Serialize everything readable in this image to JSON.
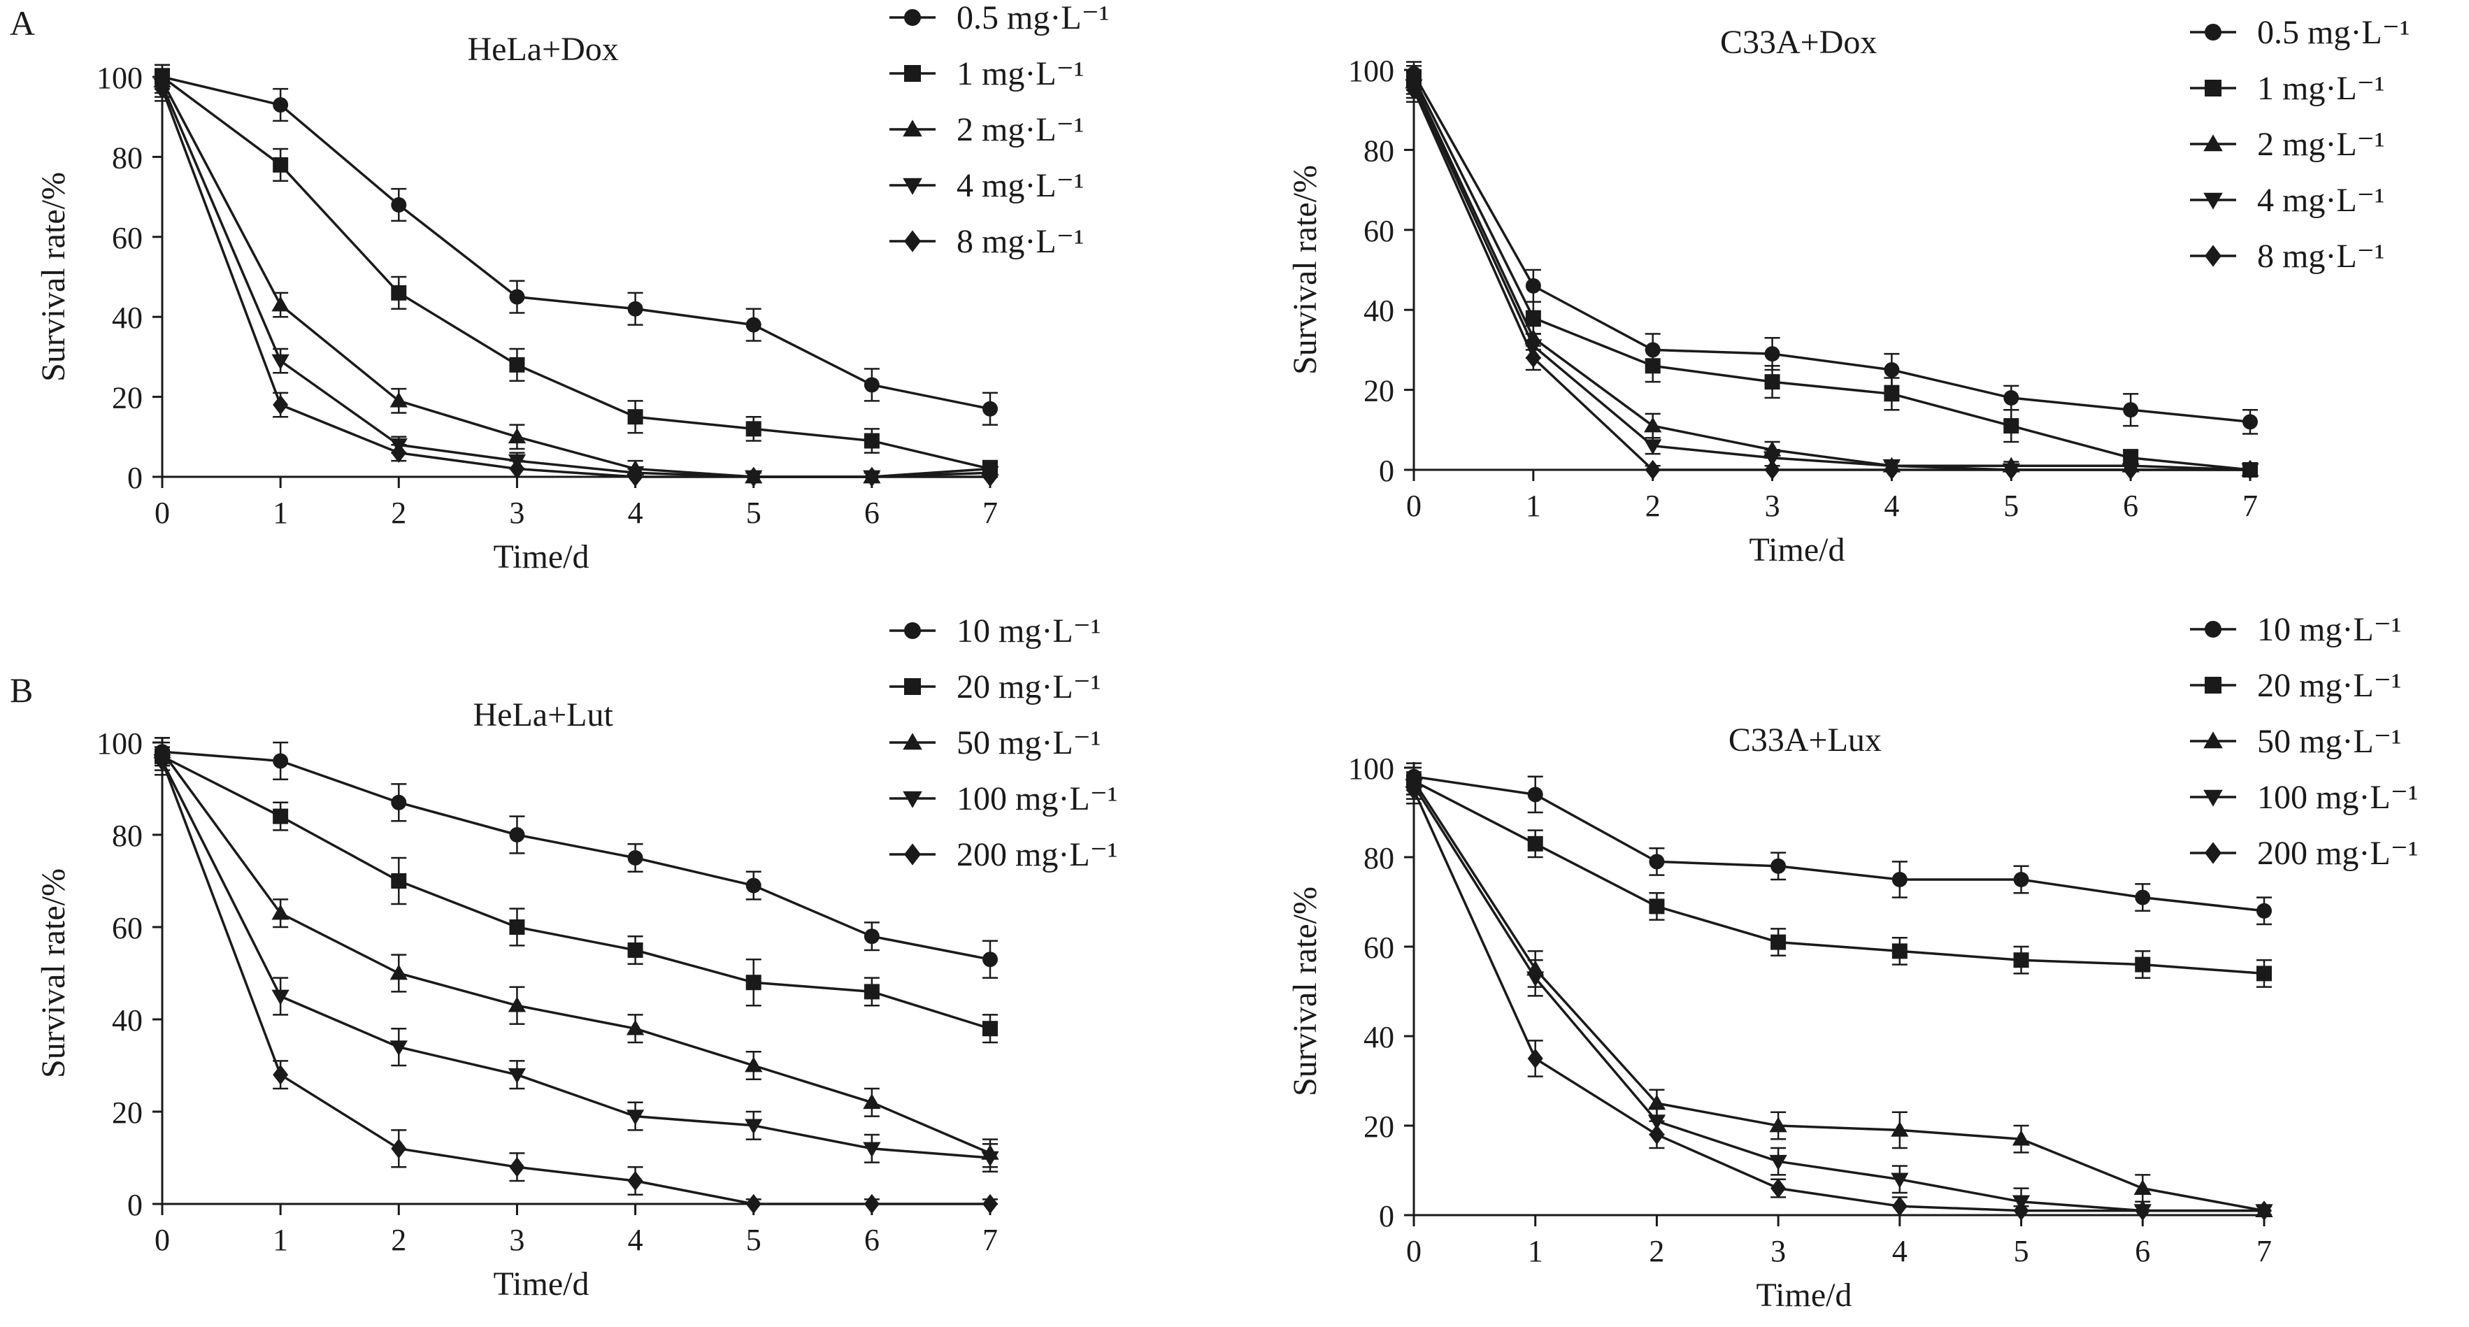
{
  "panel_labels": [
    "A",
    "B"
  ],
  "colors": {
    "ink": "#1a1a1a",
    "background": "#ffffff"
  },
  "chart_data": [
    {
      "type": "line",
      "title": "HeLa+Dox",
      "xlabel": "Time/d",
      "ylabel": "Survival rate/%",
      "x": [
        0,
        1,
        2,
        3,
        4,
        5,
        6,
        7
      ],
      "xlim": [
        0,
        7
      ],
      "ylim": [
        0,
        100
      ],
      "yticks": [
        0,
        20,
        40,
        60,
        80,
        100
      ],
      "legend_position": "top-right, outside plot",
      "grid": false,
      "error_bars": true,
      "series": [
        {
          "name": "0.5 mg·L⁻¹",
          "marker": "circle",
          "values": [
            100,
            93,
            68,
            45,
            42,
            38,
            23,
            17
          ],
          "errors": [
            3,
            4,
            4,
            4,
            4,
            4,
            4,
            4
          ]
        },
        {
          "name": "1 mg·L⁻¹",
          "marker": "square",
          "values": [
            100,
            78,
            46,
            28,
            15,
            12,
            9,
            2
          ],
          "errors": [
            3,
            4,
            4,
            4,
            4,
            3,
            3,
            2
          ]
        },
        {
          "name": "2 mg·L⁻¹",
          "marker": "triangle-up",
          "values": [
            99,
            43,
            19,
            10,
            2,
            0,
            0,
            2
          ],
          "errors": [
            3,
            3,
            3,
            3,
            2,
            1,
            1,
            2
          ]
        },
        {
          "name": "4 mg·L⁻¹",
          "marker": "triangle-down",
          "values": [
            98,
            29,
            8,
            4,
            1,
            0,
            0,
            1
          ],
          "errors": [
            3,
            3,
            2,
            2,
            1,
            1,
            1,
            1
          ]
        },
        {
          "name": "8 mg·L⁻¹",
          "marker": "diamond",
          "values": [
            97,
            18,
            6,
            2,
            0,
            0,
            0,
            0
          ],
          "errors": [
            3,
            3,
            2,
            2,
            1,
            1,
            1,
            1
          ]
        }
      ]
    },
    {
      "type": "line",
      "title": "C33A+Dox",
      "xlabel": "Time/d",
      "ylabel": "Survival rate/%",
      "x": [
        0,
        1,
        2,
        3,
        4,
        5,
        6,
        7
      ],
      "xlim": [
        0,
        7
      ],
      "ylim": [
        0,
        100
      ],
      "yticks": [
        0,
        20,
        40,
        60,
        80,
        100
      ],
      "legend_position": "top-right, outside plot",
      "grid": false,
      "error_bars": true,
      "series": [
        {
          "name": "0.5 mg·L⁻¹",
          "marker": "circle",
          "values": [
            99,
            46,
            30,
            29,
            25,
            18,
            15,
            12
          ],
          "errors": [
            3,
            4,
            4,
            4,
            4,
            3,
            4,
            3
          ]
        },
        {
          "name": "1 mg·L⁻¹",
          "marker": "square",
          "values": [
            98,
            38,
            26,
            22,
            19,
            11,
            3,
            0
          ],
          "errors": [
            3,
            4,
            4,
            4,
            4,
            4,
            2,
            1
          ]
        },
        {
          "name": "2 mg·L⁻¹",
          "marker": "triangle-up",
          "values": [
            97,
            33,
            11,
            5,
            1,
            1,
            1,
            0
          ],
          "errors": [
            3,
            3,
            3,
            2,
            1,
            1,
            1,
            1
          ]
        },
        {
          "name": "4 mg·L⁻¹",
          "marker": "triangle-down",
          "values": [
            96,
            31,
            6,
            3,
            1,
            0,
            0,
            0
          ],
          "errors": [
            3,
            3,
            2,
            2,
            1,
            1,
            1,
            1
          ]
        },
        {
          "name": "8 mg·L⁻¹",
          "marker": "diamond",
          "values": [
            95,
            28,
            0,
            0,
            0,
            0,
            0,
            0
          ],
          "errors": [
            3,
            3,
            1,
            1,
            1,
            1,
            1,
            1
          ]
        }
      ]
    },
    {
      "type": "line",
      "title": "HeLa+Lut",
      "xlabel": "Time/d",
      "ylabel": "Survival rate/%",
      "x": [
        0,
        1,
        2,
        3,
        4,
        5,
        6,
        7
      ],
      "xlim": [
        0,
        7
      ],
      "ylim": [
        0,
        100
      ],
      "yticks": [
        0,
        20,
        40,
        60,
        80,
        100
      ],
      "legend_position": "top-right, outside plot",
      "grid": false,
      "error_bars": true,
      "series": [
        {
          "name": "10 mg·L⁻¹",
          "marker": "circle",
          "values": [
            98,
            96,
            87,
            80,
            75,
            69,
            58,
            53
          ],
          "errors": [
            3,
            4,
            4,
            4,
            3,
            3,
            3,
            4
          ]
        },
        {
          "name": "20 mg·L⁻¹",
          "marker": "square",
          "values": [
            97,
            84,
            70,
            60,
            55,
            48,
            46,
            38
          ],
          "errors": [
            3,
            3,
            5,
            4,
            3,
            5,
            3,
            3
          ]
        },
        {
          "name": "50 mg·L⁻¹",
          "marker": "triangle-up",
          "values": [
            98,
            63,
            50,
            43,
            38,
            30,
            22,
            11
          ],
          "errors": [
            3,
            3,
            4,
            4,
            3,
            3,
            3,
            3
          ]
        },
        {
          "name": "100 mg·L⁻¹",
          "marker": "triangle-down",
          "values": [
            96,
            45,
            34,
            28,
            19,
            17,
            12,
            10
          ],
          "errors": [
            3,
            4,
            4,
            3,
            3,
            3,
            3,
            3
          ]
        },
        {
          "name": "200 mg·L⁻¹",
          "marker": "diamond",
          "values": [
            96,
            28,
            12,
            8,
            5,
            0,
            0,
            0
          ],
          "errors": [
            3,
            3,
            4,
            3,
            3,
            1,
            1,
            1
          ]
        }
      ]
    },
    {
      "type": "line",
      "title": "C33A+Lux",
      "xlabel": "Time/d",
      "ylabel": "Survival rate/%",
      "x": [
        0,
        1,
        2,
        3,
        4,
        5,
        6,
        7
      ],
      "xlim": [
        0,
        7
      ],
      "ylim": [
        0,
        100
      ],
      "yticks": [
        0,
        20,
        40,
        60,
        80,
        100
      ],
      "legend_position": "top-right, outside plot",
      "grid": false,
      "error_bars": true,
      "series": [
        {
          "name": "10 mg·L⁻¹",
          "marker": "circle",
          "values": [
            98,
            94,
            79,
            78,
            75,
            75,
            71,
            68
          ],
          "errors": [
            3,
            4,
            3,
            3,
            4,
            3,
            3,
            3
          ]
        },
        {
          "name": "20 mg·L⁻¹",
          "marker": "square",
          "values": [
            97,
            83,
            69,
            61,
            59,
            57,
            56,
            54
          ],
          "errors": [
            3,
            3,
            3,
            3,
            3,
            3,
            3,
            3
          ]
        },
        {
          "name": "50 mg·L⁻¹",
          "marker": "triangle-up",
          "values": [
            97,
            55,
            25,
            20,
            19,
            17,
            6,
            1
          ],
          "errors": [
            3,
            4,
            3,
            3,
            4,
            3,
            3,
            1
          ]
        },
        {
          "name": "100 mg·L⁻¹",
          "marker": "triangle-down",
          "values": [
            96,
            53,
            21,
            12,
            8,
            3,
            1,
            1
          ],
          "errors": [
            3,
            4,
            3,
            3,
            3,
            3,
            1,
            1
          ]
        },
        {
          "name": "200 mg·L⁻¹",
          "marker": "diamond",
          "values": [
            95,
            35,
            18,
            6,
            2,
            1,
            1,
            1
          ],
          "errors": [
            3,
            4,
            3,
            2,
            2,
            1,
            1,
            1
          ]
        }
      ]
    }
  ]
}
